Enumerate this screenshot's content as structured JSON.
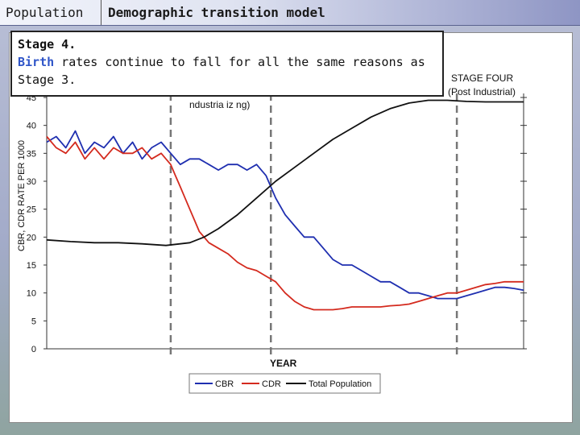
{
  "header": {
    "left_title": "Population",
    "right_title": "Demographic transition model"
  },
  "info_box": {
    "title": "Stage 4.",
    "accent_word": "Birth",
    "line1_rest": " rates continue to fall for all the same reasons as",
    "line2": "Stage 3."
  },
  "stage_labels": {
    "stage4_title": "STAGE FOUR",
    "stage4_sub": "(Post Industrial)",
    "stage3_partial": "ndustria iz ng)"
  },
  "chart_data": {
    "type": "line",
    "xlabel": "YEAR",
    "ylabel": "CBR, CDR RATE PER 1000",
    "ylim": [
      0,
      45
    ],
    "y_ticks": [
      "0",
      "5",
      "10",
      "15",
      "20",
      "25",
      "30",
      "35",
      "40",
      "45"
    ],
    "stage_boundaries_percent": [
      26,
      47,
      86
    ],
    "legend": [
      "CBR",
      "CDR",
      "Total Population"
    ],
    "colors": {
      "CBR": "#1f2fb0",
      "CDR": "#d42a1e",
      "Total Population": "#111111"
    },
    "series": [
      {
        "name": "CBR",
        "x_percent": [
          0,
          2,
          4,
          6,
          8,
          10,
          12,
          14,
          16,
          18,
          20,
          22,
          24,
          26,
          28,
          30,
          32,
          34,
          36,
          38,
          40,
          42,
          44,
          46,
          48,
          50,
          52,
          54,
          56,
          58,
          60,
          62,
          64,
          66,
          68,
          70,
          72,
          74,
          76,
          78,
          80,
          82,
          84,
          86,
          88,
          90,
          92,
          94,
          96,
          98,
          100
        ],
        "values": [
          37,
          38,
          36,
          39,
          35,
          37,
          36,
          38,
          35,
          37,
          34,
          36,
          37,
          35,
          33,
          34,
          34,
          33,
          32,
          33,
          33,
          32,
          33,
          31,
          27,
          24,
          22,
          20,
          20,
          18,
          16,
          15,
          15,
          14,
          13,
          12,
          12,
          11,
          10,
          10,
          9.5,
          9,
          9,
          9,
          9.5,
          10,
          10.5,
          11,
          11,
          10.8,
          10.5
        ]
      },
      {
        "name": "CDR",
        "x_percent": [
          0,
          2,
          4,
          6,
          8,
          10,
          12,
          14,
          16,
          18,
          20,
          22,
          24,
          25,
          26,
          27,
          28,
          29,
          30,
          31,
          32,
          34,
          36,
          38,
          40,
          42,
          44,
          46,
          48,
          50,
          52,
          54,
          56,
          58,
          60,
          62,
          64,
          66,
          68,
          70,
          72,
          74,
          76,
          78,
          80,
          82,
          84,
          86,
          88,
          90,
          92,
          94,
          96,
          98,
          100
        ],
        "values": [
          38,
          36,
          35,
          37,
          34,
          36,
          34,
          36,
          35,
          35,
          36,
          34,
          35,
          34,
          33,
          31,
          29,
          27,
          25,
          23,
          21,
          19,
          18,
          17,
          15.5,
          14.5,
          14,
          13,
          12,
          10,
          8.5,
          7.5,
          7,
          7,
          7,
          7.2,
          7.5,
          7.5,
          7.5,
          7.5,
          7.7,
          7.8,
          8,
          8.5,
          9,
          9.5,
          10,
          10,
          10.5,
          11,
          11.5,
          11.7,
          12,
          12,
          12
        ]
      },
      {
        "name": "Total Population",
        "x_percent": [
          0,
          5,
          10,
          15,
          20,
          25,
          30,
          33,
          36,
          40,
          44,
          48,
          52,
          56,
          60,
          64,
          68,
          72,
          76,
          80,
          84,
          88,
          92,
          96,
          100
        ],
        "values": [
          19.5,
          19.2,
          19,
          19,
          18.8,
          18.5,
          19,
          20,
          21.5,
          24,
          27,
          30,
          32.5,
          35,
          37.5,
          39.5,
          41.5,
          43,
          44,
          44.5,
          44.5,
          44.3,
          44.2,
          44.2,
          44.2
        ]
      }
    ]
  }
}
